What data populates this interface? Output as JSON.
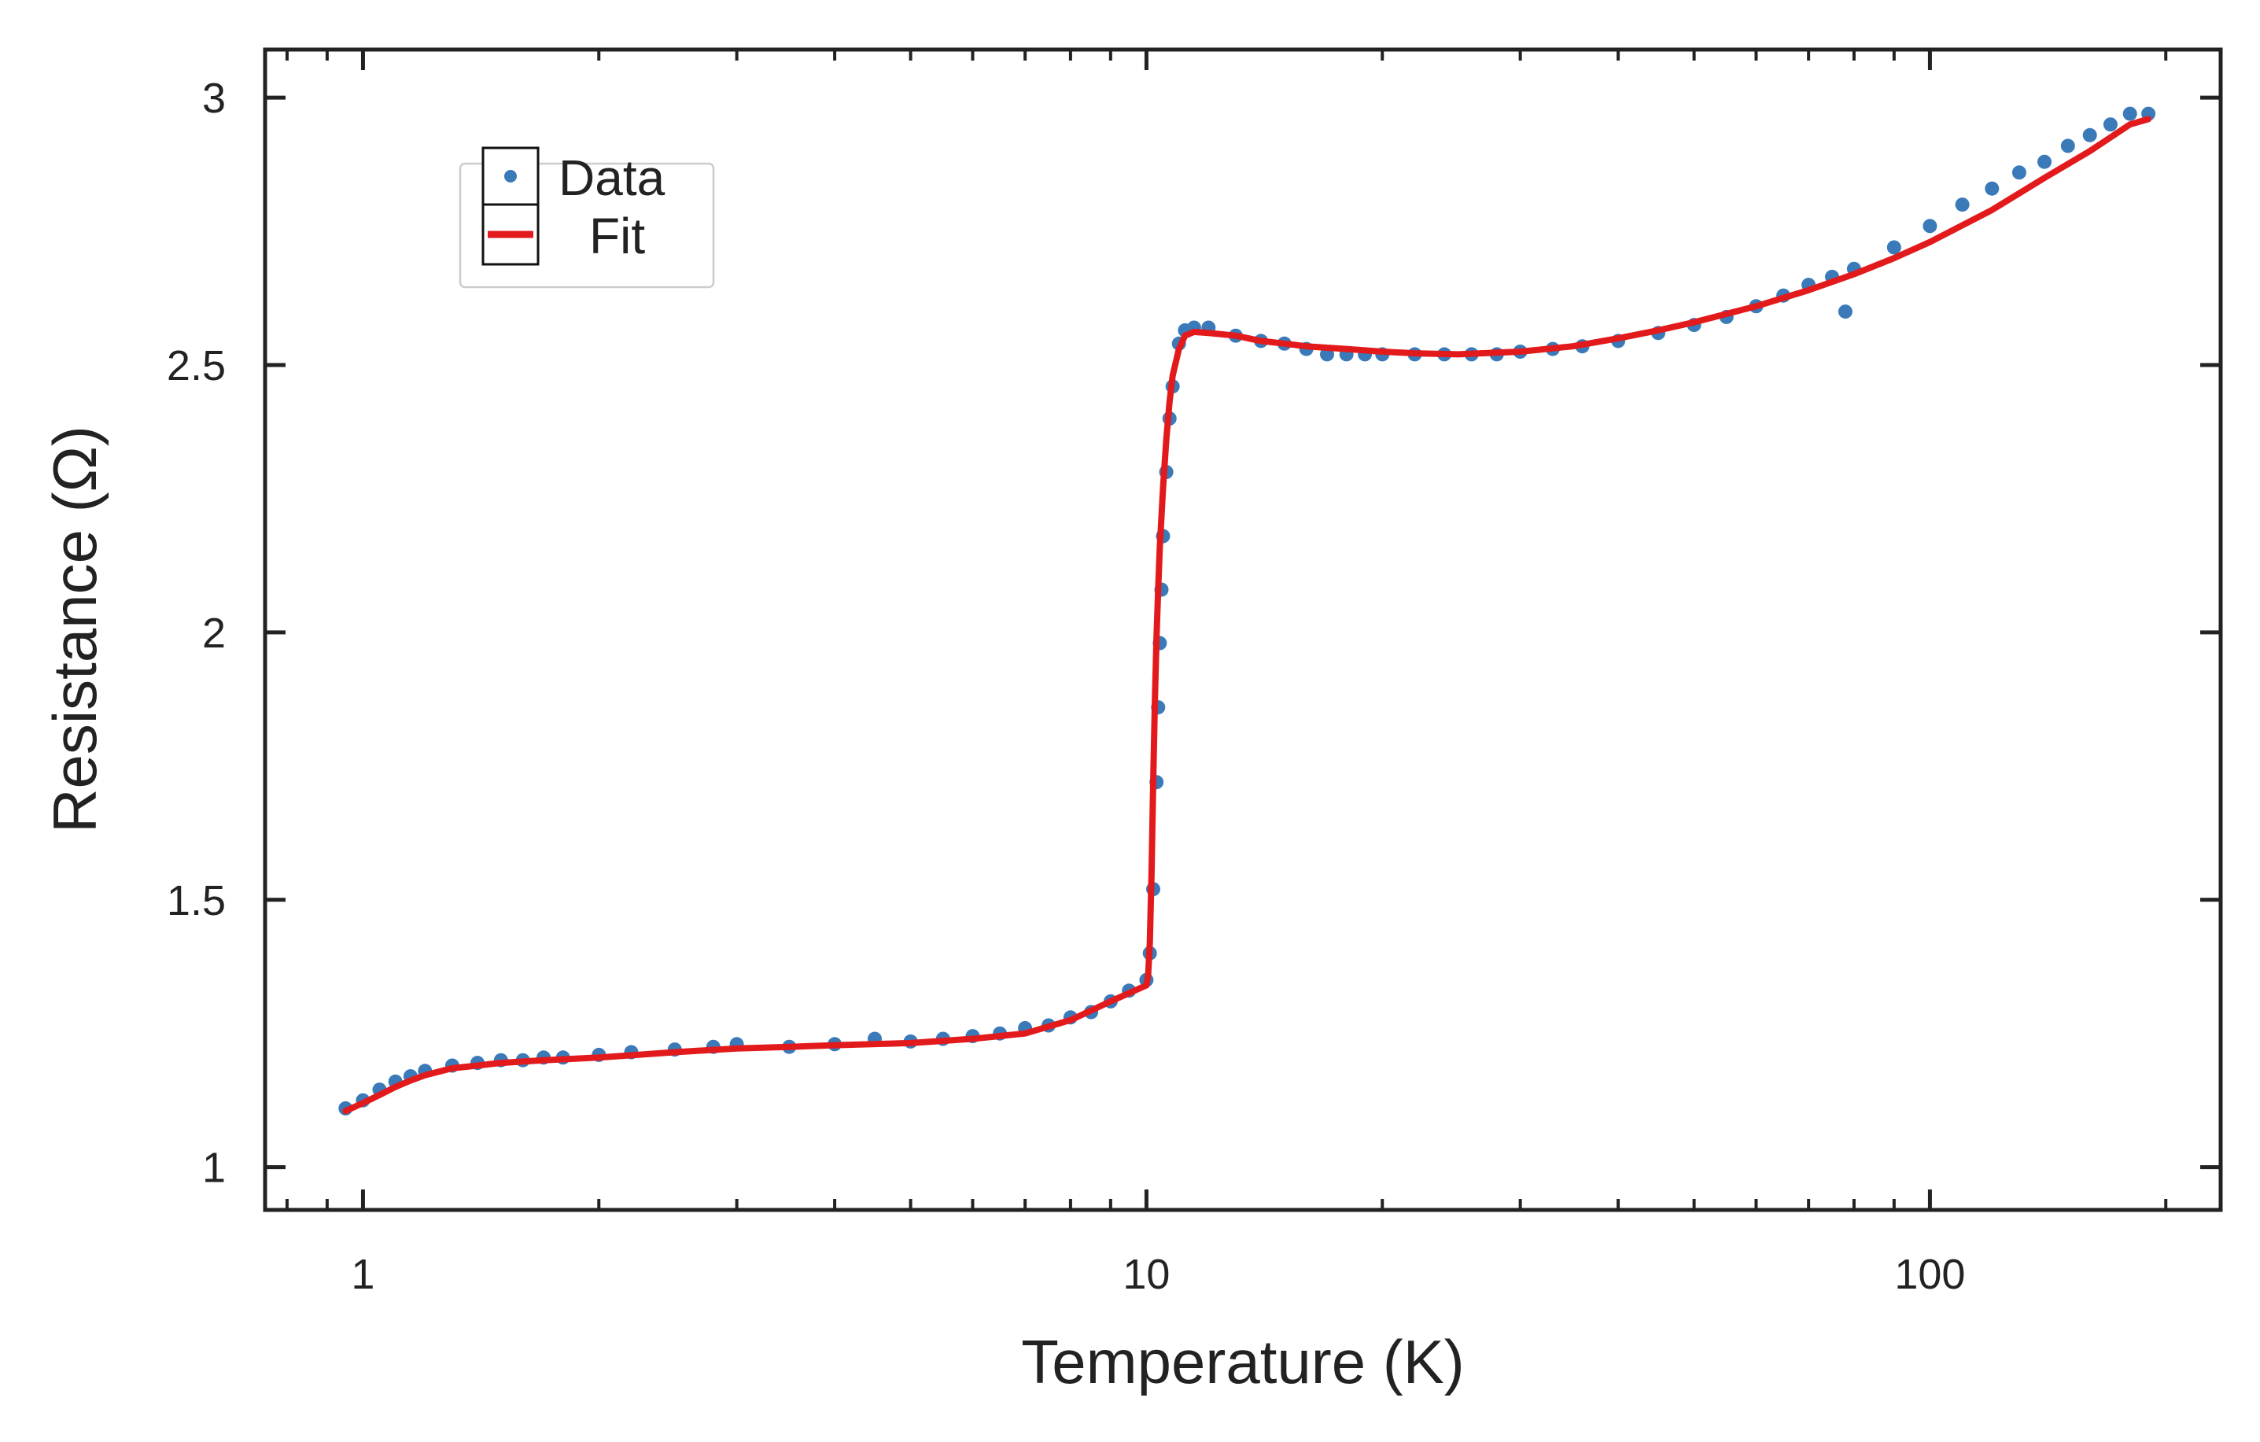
{
  "chart_data": {
    "type": "scatter",
    "xlabel": "Temperature (K)",
    "ylabel": "Resistance (Ω)",
    "xscale": "log",
    "yscale": "linear",
    "xlim": [
      0.75,
      235
    ],
    "ylim": [
      0.92,
      3.09
    ],
    "x_ticks": [
      {
        "value": 1,
        "label": "1"
      },
      {
        "value": 10,
        "label": "10"
      },
      {
        "value": 100,
        "label": "100"
      }
    ],
    "y_ticks": [
      {
        "value": 1,
        "label": "1"
      },
      {
        "value": 1.5,
        "label": "1.5"
      },
      {
        "value": 2,
        "label": "2"
      },
      {
        "value": 2.5,
        "label": "2.5"
      },
      {
        "value": 3,
        "label": "3"
      }
    ],
    "grid": false,
    "legend": {
      "position": "top-left",
      "entries": [
        {
          "label": "Data",
          "color": "#3a7ab8",
          "marker": "dot"
        },
        {
          "label": "Fit",
          "color": "#e31a1c",
          "marker": "line"
        }
      ]
    },
    "series": [
      {
        "name": "Data",
        "style": "markers",
        "color": "#3a7ab8",
        "x": [
          0.95,
          1.0,
          1.05,
          1.1,
          1.15,
          1.2,
          1.3,
          1.4,
          1.5,
          1.6,
          1.7,
          1.8,
          2.0,
          2.2,
          2.5,
          2.8,
          3.0,
          3.5,
          4.0,
          4.5,
          5.0,
          5.5,
          6.0,
          6.5,
          7.0,
          7.5,
          8.0,
          8.5,
          9.0,
          9.5,
          10.0,
          10.1,
          10.2,
          10.3,
          10.35,
          10.4,
          10.45,
          10.5,
          10.6,
          10.7,
          10.8,
          11.0,
          11.2,
          11.5,
          12.0,
          13.0,
          14.0,
          15.0,
          16.0,
          17.0,
          18.0,
          19.0,
          20.0,
          22.0,
          24.0,
          26.0,
          28.0,
          30.0,
          33.0,
          36.0,
          40.0,
          45.0,
          50.0,
          55.0,
          60.0,
          65.0,
          70.0,
          75.0,
          78.0,
          80.0,
          90.0,
          100.0,
          110.0,
          120.0,
          130.0,
          140.0,
          150.0,
          160.0,
          170.0,
          180.0,
          190.0
        ],
        "y": [
          1.11,
          1.125,
          1.145,
          1.16,
          1.17,
          1.18,
          1.19,
          1.195,
          1.2,
          1.2,
          1.205,
          1.205,
          1.21,
          1.215,
          1.22,
          1.225,
          1.23,
          1.225,
          1.23,
          1.24,
          1.235,
          1.24,
          1.245,
          1.25,
          1.26,
          1.265,
          1.28,
          1.29,
          1.31,
          1.33,
          1.35,
          1.4,
          1.52,
          1.72,
          1.86,
          1.98,
          2.08,
          2.18,
          2.3,
          2.4,
          2.46,
          2.54,
          2.565,
          2.57,
          2.57,
          2.555,
          2.545,
          2.54,
          2.53,
          2.52,
          2.52,
          2.52,
          2.52,
          2.52,
          2.52,
          2.52,
          2.52,
          2.525,
          2.53,
          2.535,
          2.545,
          2.56,
          2.575,
          2.59,
          2.61,
          2.63,
          2.65,
          2.665,
          2.6,
          2.68,
          2.72,
          2.76,
          2.8,
          2.83,
          2.86,
          2.88,
          2.91,
          2.93,
          2.95,
          2.97,
          2.97
        ]
      },
      {
        "name": "Fit",
        "style": "line",
        "color": "#e31a1c",
        "x": [
          0.95,
          1.0,
          1.05,
          1.1,
          1.15,
          1.2,
          1.3,
          1.4,
          1.5,
          1.7,
          2.0,
          2.5,
          3.0,
          3.5,
          4.0,
          5.0,
          6.0,
          7.0,
          8.0,
          9.0,
          10.0,
          10.05,
          10.1,
          10.15,
          10.2,
          10.25,
          10.3,
          10.35,
          10.4,
          10.5,
          10.6,
          10.7,
          10.8,
          11.0,
          11.2,
          11.5,
          12.0,
          13.0,
          14.0,
          15.0,
          16.0,
          18.0,
          20.0,
          22.0,
          25.0,
          30.0,
          35.0,
          40.0,
          45.0,
          50.0,
          60.0,
          70.0,
          80.0,
          90.0,
          100.0,
          120.0,
          140.0,
          160.0,
          180.0,
          190.0
        ],
        "y": [
          1.105,
          1.12,
          1.135,
          1.15,
          1.162,
          1.172,
          1.185,
          1.19,
          1.195,
          1.2,
          1.205,
          1.215,
          1.222,
          1.225,
          1.228,
          1.232,
          1.24,
          1.25,
          1.275,
          1.31,
          1.34,
          1.36,
          1.42,
          1.55,
          1.72,
          1.87,
          1.99,
          2.08,
          2.16,
          2.27,
          2.36,
          2.43,
          2.48,
          2.53,
          2.555,
          2.562,
          2.56,
          2.555,
          2.545,
          2.54,
          2.535,
          2.53,
          2.525,
          2.522,
          2.52,
          2.525,
          2.535,
          2.55,
          2.565,
          2.58,
          2.61,
          2.64,
          2.67,
          2.7,
          2.73,
          2.79,
          2.85,
          2.9,
          2.95,
          2.96
        ]
      }
    ]
  }
}
